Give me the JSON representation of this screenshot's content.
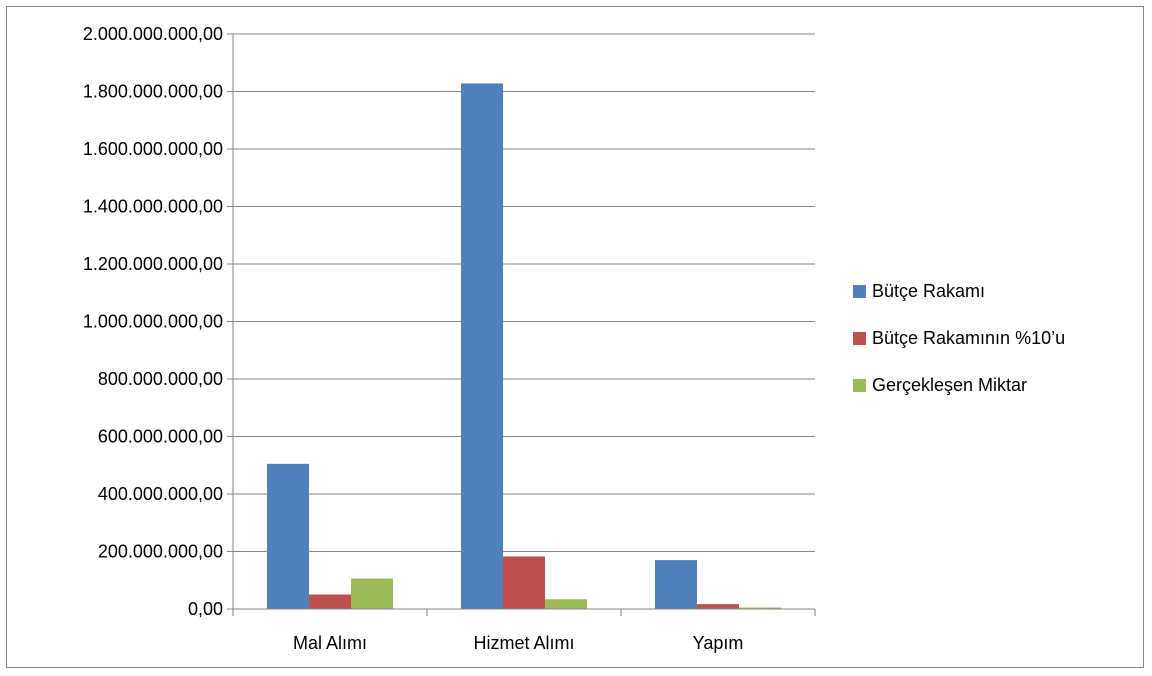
{
  "chart_data": {
    "type": "bar",
    "categories": [
      "Mal Alımı",
      "Hizmet Alımı",
      "Yapım"
    ],
    "series": [
      {
        "name": "Bütçe Rakamı",
        "color": "#4F81BD",
        "values": [
          505000000,
          1828000000,
          170000000
        ]
      },
      {
        "name": "Bütçe Rakamının %10’u",
        "color": "#C0504D",
        "values": [
          50500000,
          182800000,
          17000000
        ]
      },
      {
        "name": "Gerçekleşen Miktar",
        "color": "#9BBB59",
        "values": [
          106000000,
          34000000,
          5000000
        ]
      }
    ],
    "y_ticks": [
      "0,00",
      "200.000.000,00",
      "400.000.000,00",
      "600.000.000,00",
      "800.000.000,00",
      "1.000.000.000,00",
      "1.200.000.000,00",
      "1.400.000.000,00",
      "1.600.000.000,00",
      "1.800.000.000,00",
      "2.000.000.000,00"
    ],
    "ylim": [
      0,
      2000000000
    ],
    "grid": true,
    "legend": "right",
    "title": "",
    "xlabel": "",
    "ylabel": ""
  }
}
